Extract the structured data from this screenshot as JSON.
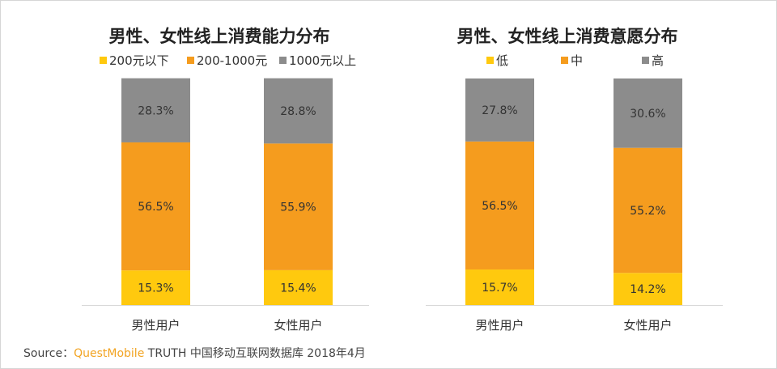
{
  "chart_data": [
    {
      "type": "bar",
      "stacked": true,
      "title": "男性、女性线上消费能力分布",
      "categories": [
        "男性用户",
        "女性用户"
      ],
      "series": [
        {
          "name": "200元以下",
          "values": [
            15.3,
            15.4
          ],
          "labels": [
            "15.3%",
            "15.4%"
          ],
          "color": "#FFC90E"
        },
        {
          "name": "200-1000元",
          "values": [
            56.5,
            55.9
          ],
          "labels": [
            "56.5%",
            "55.9%"
          ],
          "color": "#F59C1E"
        },
        {
          "name": "1000元以上",
          "values": [
            28.3,
            28.8
          ],
          "labels": [
            "28.3%",
            "28.8%"
          ],
          "color": "#8C8C8C"
        }
      ],
      "ylim": [
        0,
        100
      ],
      "grid": false,
      "legend": "top"
    },
    {
      "type": "bar",
      "stacked": true,
      "title": "男性、女性线上消费意愿分布",
      "categories": [
        "男性用户",
        "女性用户"
      ],
      "series": [
        {
          "name": "低",
          "values": [
            15.7,
            14.2
          ],
          "labels": [
            "15.7%",
            "14.2%"
          ],
          "color": "#FFC90E"
        },
        {
          "name": "中",
          "values": [
            56.5,
            55.2
          ],
          "labels": [
            "56.5%",
            "55.2%"
          ],
          "color": "#F59C1E"
        },
        {
          "name": "高",
          "values": [
            27.8,
            30.6
          ],
          "labels": [
            "27.8%",
            "30.6%"
          ],
          "color": "#8C8C8C"
        }
      ],
      "ylim": [
        0,
        100
      ],
      "grid": false,
      "legend": "top"
    }
  ],
  "source": {
    "prefix": "Source：",
    "brand": "QuestMobile",
    "text": " TRUTH 中国移动互联网数据库 2018年4月"
  }
}
